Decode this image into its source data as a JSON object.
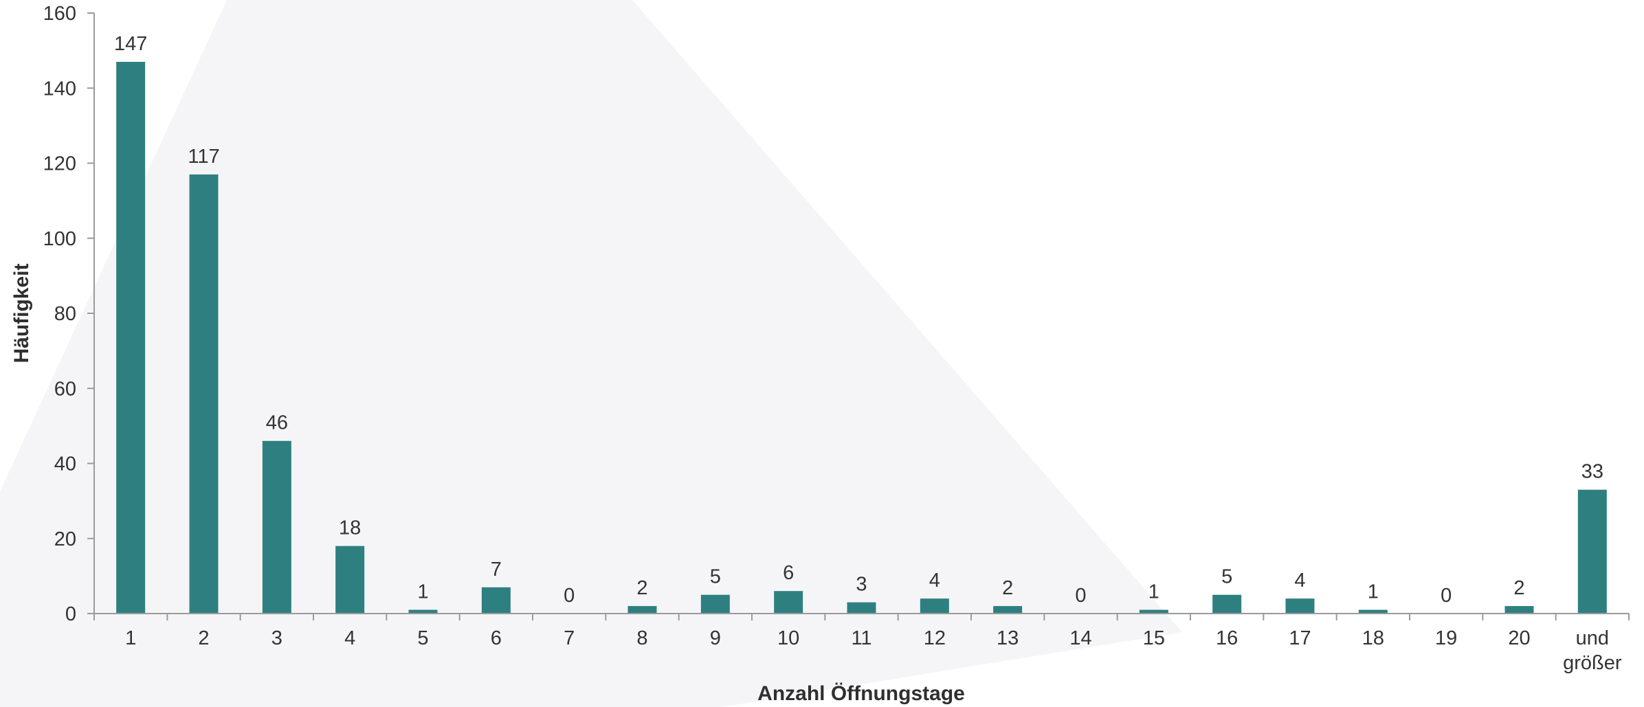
{
  "chart_data": {
    "type": "bar",
    "title": "",
    "xlabel": "Anzahl Öffnungstage",
    "ylabel": "Häufigkeit",
    "ylim": [
      0,
      160
    ],
    "yticks": [
      0,
      20,
      40,
      60,
      80,
      100,
      120,
      140,
      160
    ],
    "grid": false,
    "legend": "none",
    "bar_color": "#2e8080",
    "categories": [
      "1",
      "2",
      "3",
      "4",
      "5",
      "6",
      "7",
      "8",
      "9",
      "10",
      "11",
      "12",
      "13",
      "14",
      "15",
      "16",
      "17",
      "18",
      "19",
      "20",
      "und größer"
    ],
    "values": [
      147,
      117,
      46,
      18,
      1,
      7,
      0,
      2,
      5,
      6,
      3,
      4,
      2,
      0,
      1,
      5,
      4,
      1,
      0,
      2,
      33
    ]
  }
}
